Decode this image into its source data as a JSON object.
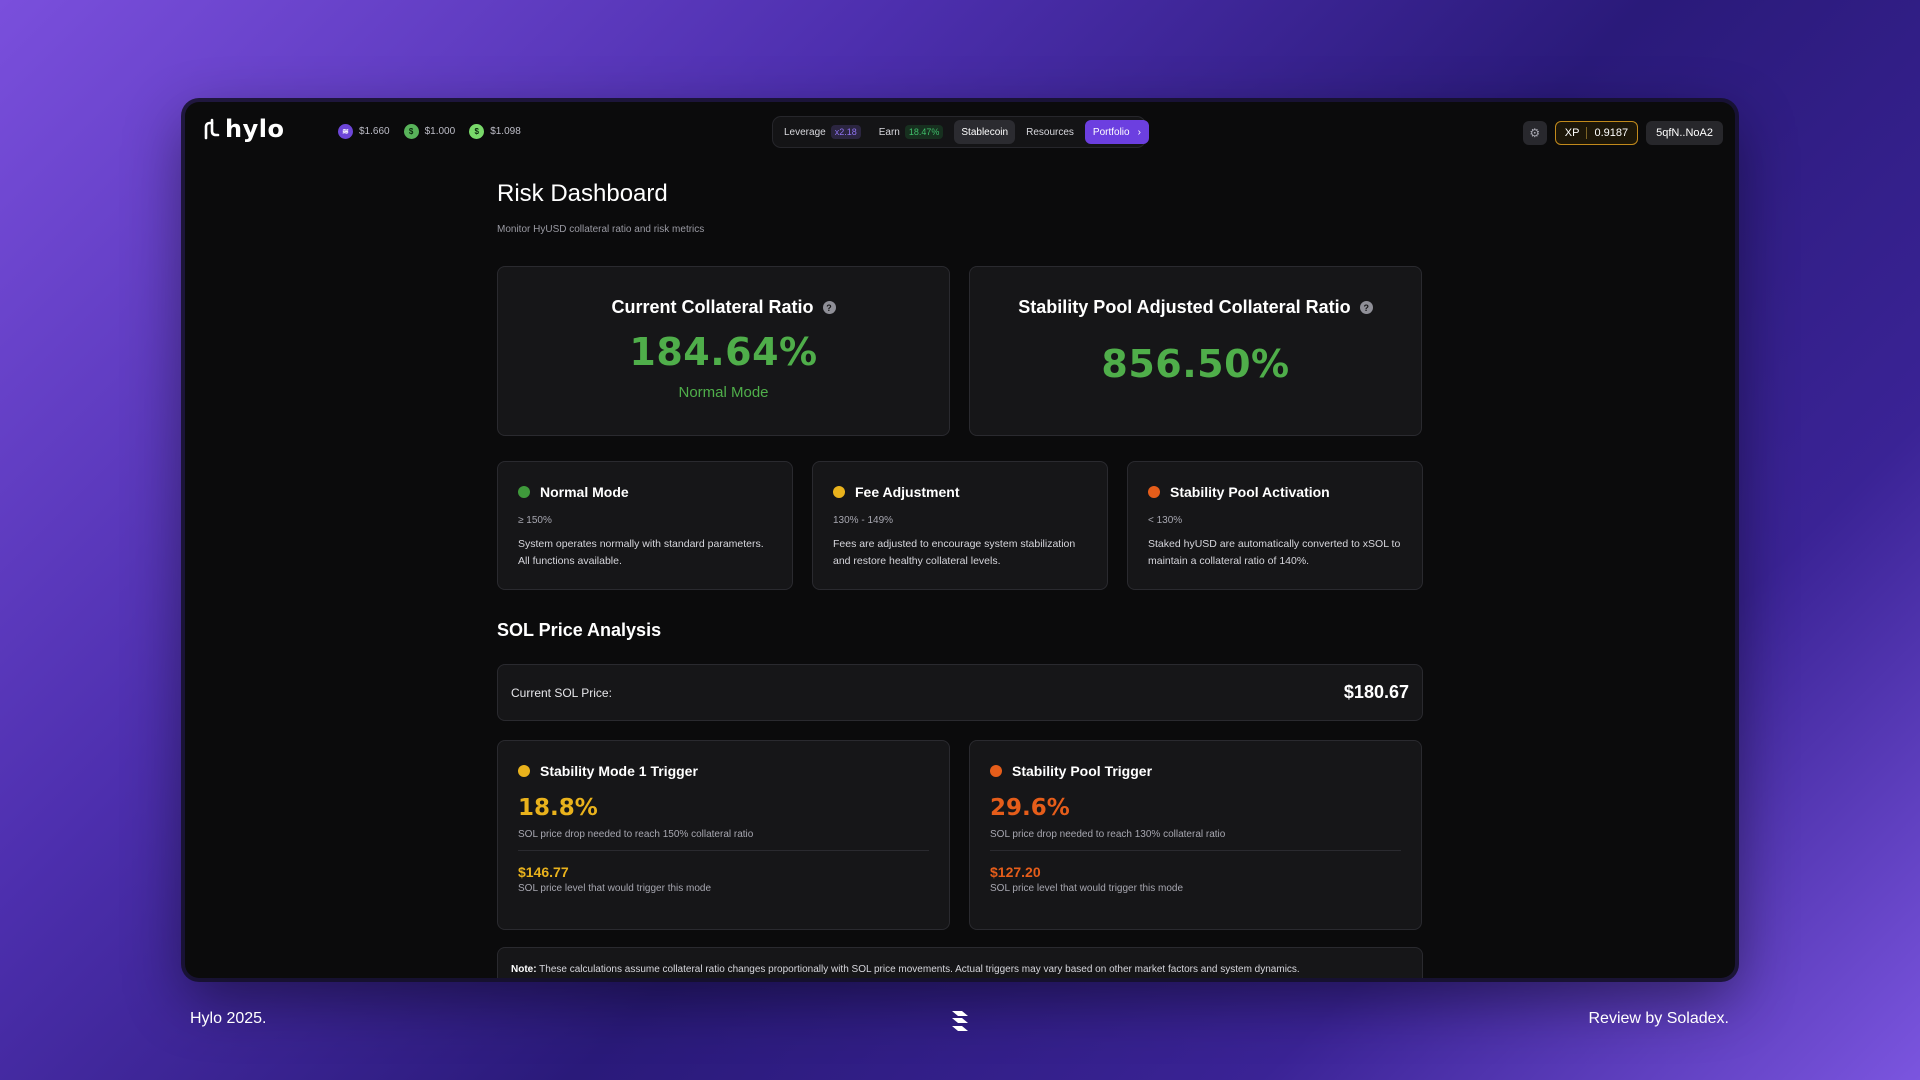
{
  "app": {
    "logo_text": "hylo"
  },
  "header": {
    "prices": [
      {
        "icon": "hyusd-coin-icon",
        "value": "$1.660"
      },
      {
        "icon": "usd-coin-icon",
        "value": "$1.000"
      },
      {
        "icon": "shyusd-coin-icon",
        "value": "$1.098"
      }
    ],
    "nav": {
      "leverage_label": "Leverage",
      "leverage_badge": "x2.18",
      "earn_label": "Earn",
      "earn_badge": "18.47%",
      "stablecoin_label": "Stablecoin",
      "resources_label": "Resources",
      "portfolio_label": "Portfolio"
    },
    "xp_label": "XP",
    "xp_value": "0.9187",
    "wallet": "5qfN..NoA2"
  },
  "page": {
    "title": "Risk Dashboard",
    "subtitle": "Monitor HyUSD collateral ratio and risk metrics"
  },
  "ratios": {
    "current": {
      "title": "Current Collateral Ratio",
      "value": "184.64%",
      "mode": "Normal Mode"
    },
    "stability_pool": {
      "title": "Stability Pool Adjusted Collateral Ratio",
      "value": "856.50%"
    }
  },
  "modes": [
    {
      "title": "Normal Mode",
      "range": "≥ 150%",
      "desc": "System operates normally with standard parameters. All functions available.",
      "color": "#3f9a3b"
    },
    {
      "title": "Fee Adjustment",
      "range": "130% - 149%",
      "desc": "Fees are adjusted to encourage system stabilization and restore healthy collateral levels.",
      "color": "#e9b21c"
    },
    {
      "title": "Stability Pool Activation",
      "range": "< 130%",
      "desc": "Staked hyUSD are automatically converted to xSOL to maintain a collateral ratio of 140%.",
      "color": "#e55d1a"
    }
  ],
  "sol": {
    "section_title": "SOL Price Analysis",
    "current_label": "Current SOL Price:",
    "current_value": "$180.67"
  },
  "triggers": [
    {
      "title": "Stability Mode 1 Trigger",
      "pct": "18.8%",
      "pct_desc": "SOL price drop needed to reach 150% collateral ratio",
      "price": "$146.77",
      "price_desc": "SOL price level that would trigger this mode",
      "color": "#e9b21c"
    },
    {
      "title": "Stability Pool Trigger",
      "pct": "29.6%",
      "pct_desc": "SOL price drop needed to reach 130% collateral ratio",
      "price": "$127.20",
      "price_desc": "SOL price level that would trigger this mode",
      "color": "#e55d1a"
    }
  ],
  "note": {
    "label": "Note:",
    "text": " These calculations assume collateral ratio changes proportionally with SOL price movements. Actual triggers may vary based on other market factors and system dynamics."
  },
  "footer": {
    "left": "Hylo 2025.",
    "right": "Review by Soladex."
  }
}
